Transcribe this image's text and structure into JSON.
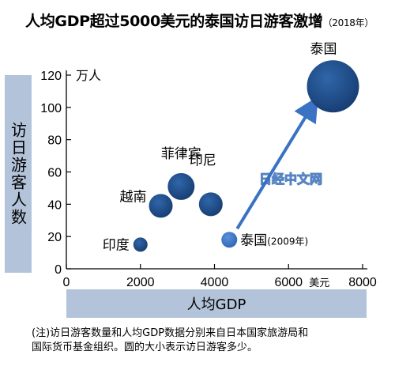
{
  "title": {
    "main": "人均GDP超过5000美元的泰国访日游客激增",
    "year": "（2018年）"
  },
  "note": {
    "line1": "(注)访日游客数量和人均GDP数据分别来自日本国家旅游局和",
    "line2": "国际货币基金组织。圆的大小表示访日游客多少。"
  },
  "watermark": "日经中文网",
  "colors": {
    "bubble": "#1f4e8c",
    "bubble_2009": "#3a72c4",
    "arrow": "#3a72c4",
    "axis_box": "#b3c3d9"
  },
  "chart_data": {
    "type": "scatter",
    "title": "人均GDP超过5000美元的泰国访日游客激增",
    "xlabel": "人均GDP",
    "ylabel": "访日游客人数",
    "x_unit": "美元",
    "y_unit": "万人",
    "xlim": [
      0,
      8000
    ],
    "ylim": [
      0,
      120
    ],
    "x_ticks": [
      0,
      2000,
      4000,
      6000,
      8000
    ],
    "y_ticks": [
      0,
      20,
      40,
      60,
      80,
      100,
      120
    ],
    "grid": false,
    "points": [
      {
        "label": "印度",
        "x": 2000,
        "y": 15
      },
      {
        "label": "越南",
        "x": 2550,
        "y": 39
      },
      {
        "label": "菲律宾",
        "x": 3100,
        "y": 51
      },
      {
        "label": "印尼",
        "x": 3900,
        "y": 40
      },
      {
        "label": "泰国",
        "x": 7200,
        "y": 113
      },
      {
        "label": "泰国",
        "label_note": "(2009年)",
        "x": 4400,
        "y": 18
      }
    ],
    "annotation": "arrow from 泰国 (2009年) to 泰国 (2018)"
  }
}
